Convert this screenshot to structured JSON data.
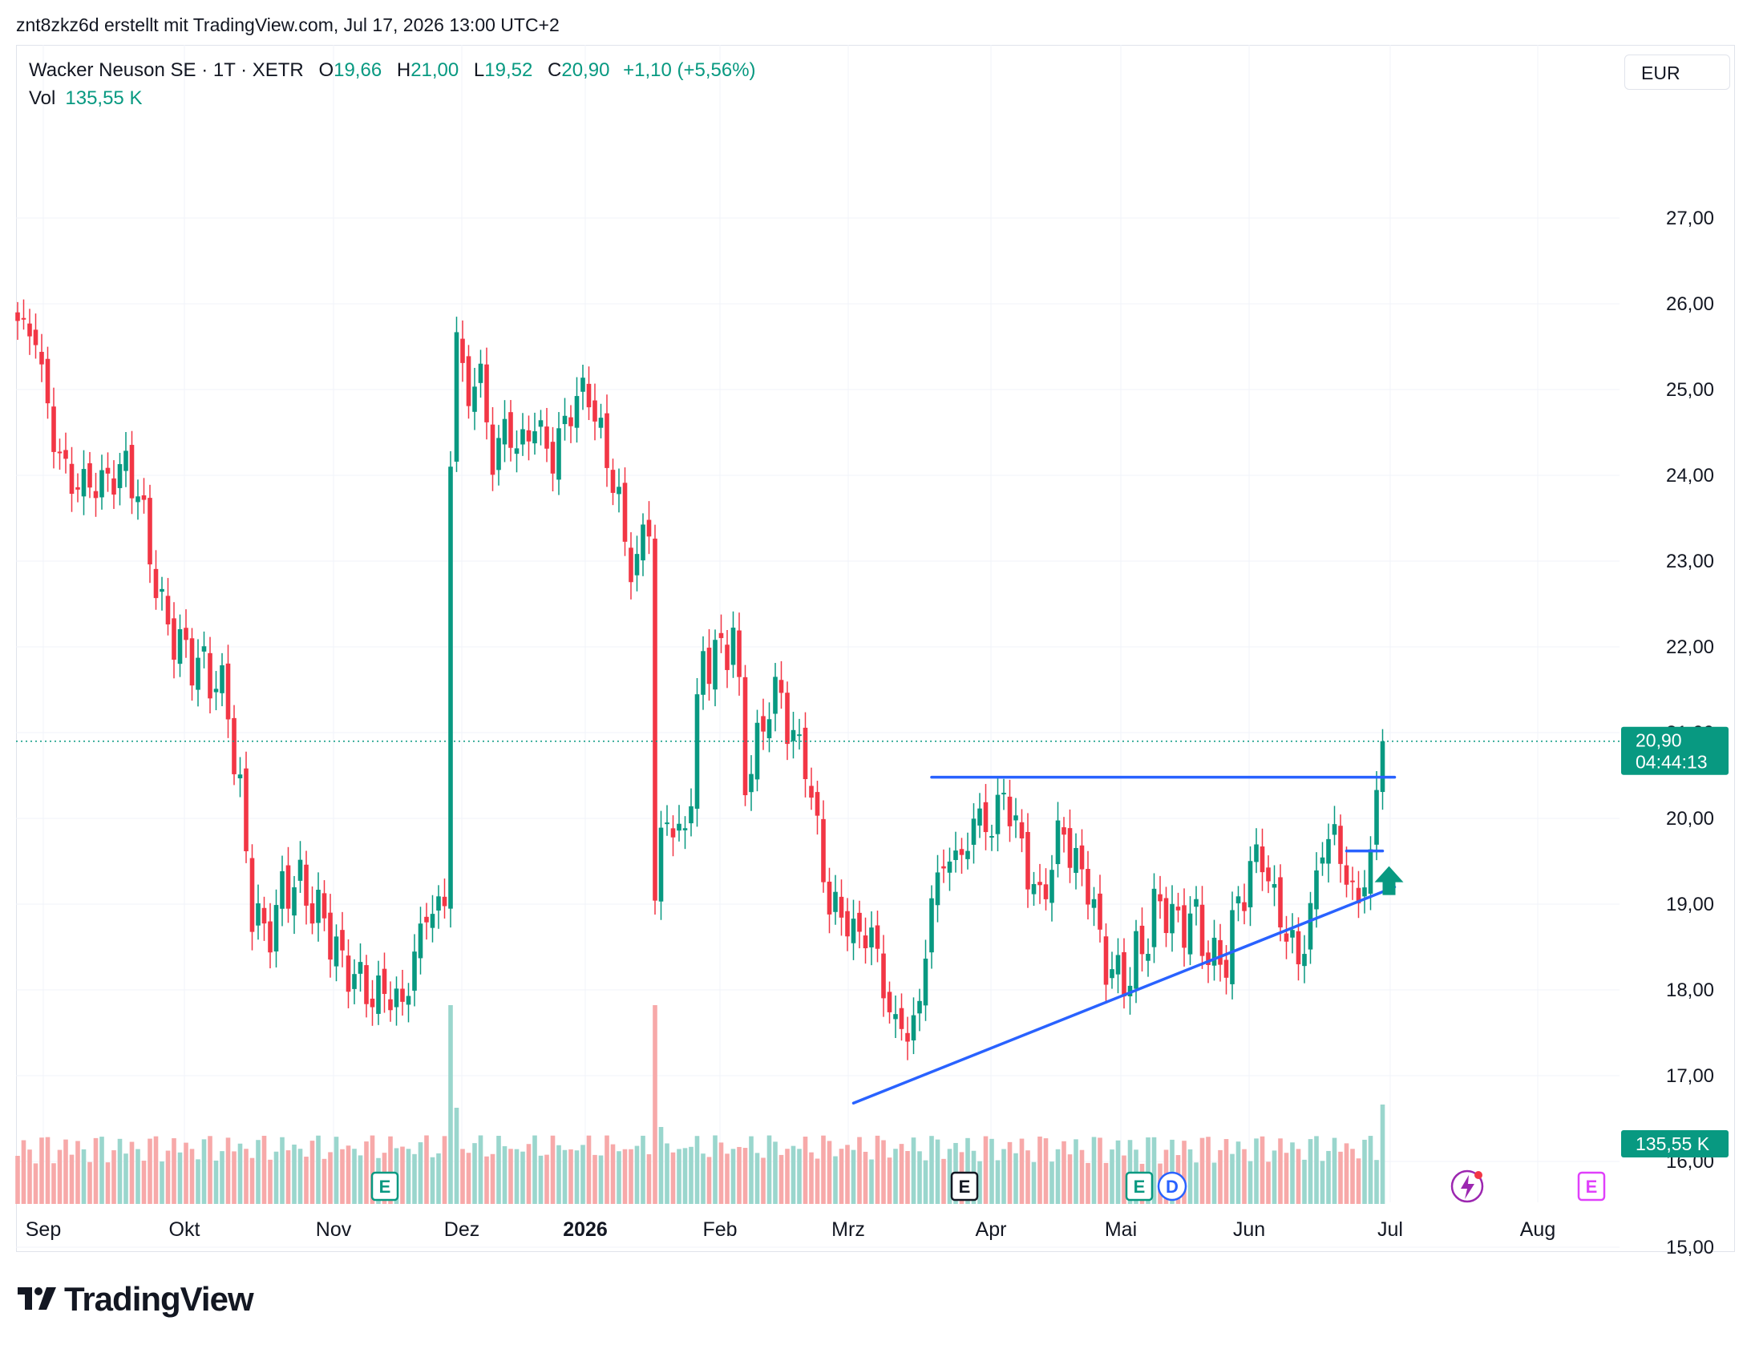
{
  "header": {
    "caption": "znt8zkz6d erstellt mit TradingView.com, Jul 17, 2026 13:00 UTC+2",
    "symbol": "Wacker Neuson SE · 1T · XETR",
    "o_label": "O",
    "o_value": "19,66",
    "h_label": "H",
    "h_value": "21,00",
    "l_label": "L",
    "l_value": "19,52",
    "c_label": "C",
    "c_value": "20,90",
    "change": "+1,10 (+5,56%)",
    "vol_label": "Vol",
    "vol_value": "135,55 K"
  },
  "currency_button": "EUR",
  "brand": {
    "name": "TradingView",
    "logo_icon": "tradingview-logo-icon"
  },
  "colors": {
    "up": "#089981",
    "down": "#f23645",
    "trendline": "#2962ff",
    "up_vol": "#9ad6cd",
    "down_vol": "#f7a9a9",
    "grid": "#f0f3fa"
  },
  "chart_data": {
    "type": "candlestick",
    "title": "Wacker Neuson SE · 1T · XETR",
    "currency": "EUR",
    "y_axis": {
      "range": [
        15.0,
        27.2
      ],
      "ticks": [
        "27,00",
        "26,00",
        "25,00",
        "24,00",
        "23,00",
        "22,00",
        "21,00",
        "20,00",
        "19,00",
        "18,00",
        "17,00",
        "16,00",
        "15,00"
      ]
    },
    "x_axis": {
      "labels": [
        "Sep",
        "Okt",
        "Nov",
        "Dez",
        "2026",
        "Feb",
        "Mrz",
        "Apr",
        "Mai",
        "Jun",
        "Jul",
        "Aug"
      ],
      "bold": [
        "2026"
      ]
    },
    "grid": true,
    "last_price": {
      "value": 20.9,
      "label": "20,90",
      "countdown": "04:44:13"
    },
    "last_volume": {
      "label": "135,55 K"
    },
    "anchors": [
      [
        0,
        25.8
      ],
      [
        3,
        25.6
      ],
      [
        6,
        24.4
      ],
      [
        9,
        23.9
      ],
      [
        14,
        23.9
      ],
      [
        18,
        24.1
      ],
      [
        20,
        23.8
      ],
      [
        24,
        22.4
      ],
      [
        27,
        22.0
      ],
      [
        30,
        21.8
      ],
      [
        33,
        21.6
      ],
      [
        35,
        21.3
      ],
      [
        37,
        20.2
      ],
      [
        39,
        19.0
      ],
      [
        41,
        18.6
      ],
      [
        44,
        19.1
      ],
      [
        46,
        19.3
      ],
      [
        48,
        19.1
      ],
      [
        51,
        18.8
      ],
      [
        54,
        18.3
      ],
      [
        57,
        18.1
      ],
      [
        59,
        17.9
      ],
      [
        61,
        18.0
      ],
      [
        64,
        17.8
      ],
      [
        66,
        18.4
      ],
      [
        68,
        18.9
      ],
      [
        71,
        19.0
      ],
      [
        72,
        24.2
      ],
      [
        73,
        25.6
      ],
      [
        75,
        24.9
      ],
      [
        77,
        25.2
      ],
      [
        79,
        24.1
      ],
      [
        81,
        24.6
      ],
      [
        83,
        24.3
      ],
      [
        86,
        24.6
      ],
      [
        89,
        24.2
      ],
      [
        92,
        24.8
      ],
      [
        95,
        25.0
      ],
      [
        97,
        24.4
      ],
      [
        99,
        24.0
      ],
      [
        101,
        23.2
      ],
      [
        103,
        22.9
      ],
      [
        105,
        23.6
      ],
      [
        106,
        19.0
      ],
      [
        108,
        20.2
      ],
      [
        110,
        19.6
      ],
      [
        112,
        20.4
      ],
      [
        114,
        21.9
      ],
      [
        117,
        21.9
      ],
      [
        119,
        22.2
      ],
      [
        121,
        20.5
      ],
      [
        123,
        20.8
      ],
      [
        125,
        21.4
      ],
      [
        127,
        21.4
      ],
      [
        129,
        20.9
      ],
      [
        131,
        20.7
      ],
      [
        133,
        19.8
      ],
      [
        135,
        19.0
      ],
      [
        138,
        18.8
      ],
      [
        140,
        18.6
      ],
      [
        142,
        18.7
      ],
      [
        144,
        18.0
      ],
      [
        146,
        17.6
      ],
      [
        148,
        17.5
      ],
      [
        150,
        17.8
      ],
      [
        152,
        19.1
      ],
      [
        155,
        19.6
      ],
      [
        157,
        19.5
      ],
      [
        159,
        20.0
      ],
      [
        162,
        19.9
      ],
      [
        164,
        20.3
      ],
      [
        166,
        19.9
      ],
      [
        168,
        19.4
      ],
      [
        170,
        19.0
      ],
      [
        172,
        19.5
      ],
      [
        174,
        19.9
      ],
      [
        176,
        19.4
      ],
      [
        178,
        19.3
      ],
      [
        180,
        18.5
      ],
      [
        183,
        18.1
      ],
      [
        185,
        18.2
      ],
      [
        187,
        18.5
      ],
      [
        189,
        18.9
      ],
      [
        191,
        19.0
      ],
      [
        193,
        18.7
      ],
      [
        195,
        18.9
      ],
      [
        197,
        18.6
      ],
      [
        199,
        18.3
      ],
      [
        201,
        18.4
      ],
      [
        203,
        19.0
      ],
      [
        205,
        19.4
      ],
      [
        207,
        19.6
      ],
      [
        209,
        19.0
      ],
      [
        211,
        18.7
      ],
      [
        213,
        18.3
      ],
      [
        215,
        18.9
      ],
      [
        217,
        19.7
      ],
      [
        219,
        19.8
      ],
      [
        221,
        19.3
      ],
      [
        223,
        19.0
      ],
      [
        225,
        19.6
      ],
      [
        227,
        20.9
      ]
    ],
    "volume_note": "daily volume bars, green for up days and red for down days; spikes at Dez and Jan",
    "volume_spikes": [
      [
        72,
        3.1
      ],
      [
        106,
        3.1
      ],
      [
        73,
        1.5
      ],
      [
        107,
        1.2
      ]
    ],
    "trendlines": [
      {
        "name": "resistance",
        "points": [
          [
            152,
            20.48
          ],
          [
            229,
            20.48
          ]
        ]
      },
      {
        "name": "support",
        "points": [
          [
            139,
            16.68
          ],
          [
            229,
            19.2
          ]
        ]
      },
      {
        "name": "breakout-base",
        "points": [
          [
            221,
            19.62
          ],
          [
            227,
            19.62
          ]
        ]
      }
    ],
    "event_markers": [
      {
        "label": "E",
        "kind": "earnings",
        "x": "Nov"
      },
      {
        "label": "E",
        "kind": "earnings",
        "x": "Mrz"
      },
      {
        "label": "E",
        "kind": "earnings",
        "x": "Mai"
      },
      {
        "label": "D",
        "kind": "dividend",
        "x": "Mai"
      },
      {
        "label": "E",
        "kind": "earnings",
        "x": "Aug"
      }
    ]
  }
}
